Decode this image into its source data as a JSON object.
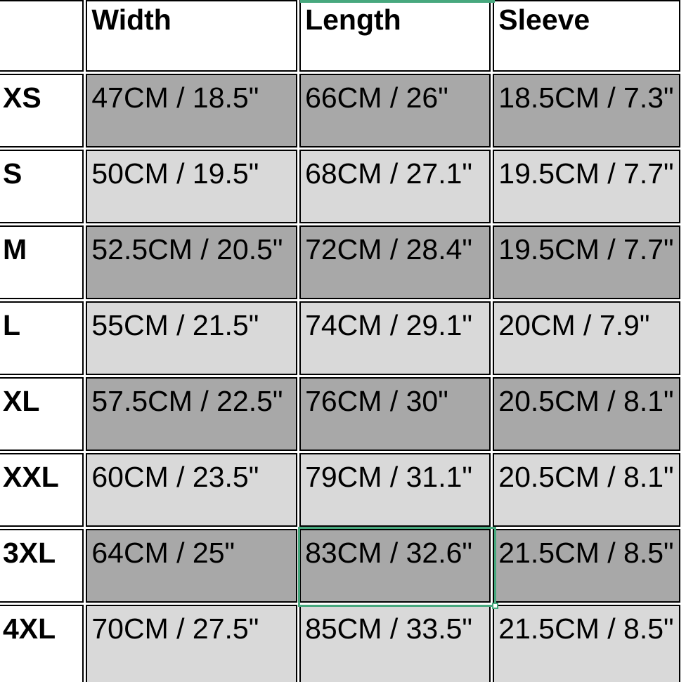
{
  "table": {
    "corner_label": "",
    "columns": [
      {
        "label": "Width"
      },
      {
        "label": "Length"
      },
      {
        "label": "Sleeve"
      }
    ],
    "rows": [
      {
        "size": "XS",
        "width": "47CM / 18.5\"",
        "length": "66CM / 26\"",
        "sleeve": "18.5CM / 7.3\""
      },
      {
        "size": "S",
        "width": "50CM / 19.5\"",
        "length": "68CM / 27.1\"",
        "sleeve": "19.5CM / 7.7\""
      },
      {
        "size": "M",
        "width": "52.5CM / 20.5\"",
        "length": "72CM / 28.4\"",
        "sleeve": "19.5CM / 7.7\""
      },
      {
        "size": "L",
        "width": "55CM / 21.5\"",
        "length": "74CM / 29.1\"",
        "sleeve": "20CM / 7.9\""
      },
      {
        "size": "XL",
        "width": "57.5CM / 22.5\"",
        "length": "76CM / 30\"",
        "sleeve": "20.5CM / 8.1\""
      },
      {
        "size": "XXL",
        "width": "60CM / 23.5\"",
        "length": "79CM / 31.1\"",
        "sleeve": "20.5CM / 8.1\""
      },
      {
        "size": "3XL",
        "width": "64CM / 25\"",
        "length": "83CM / 32.6\"",
        "sleeve": "21.5CM / 8.5\""
      },
      {
        "size": "4XL",
        "width": "70CM / 27.5\"",
        "length": "85CM / 33.5\"",
        "sleeve": "21.5CM / 8.5\""
      }
    ],
    "selection": {
      "row": "3XL",
      "column": "Length",
      "value": "83CM / 32.6\""
    },
    "colors": {
      "row_dark": "#a8a8a8",
      "row_light": "#d9d9d9",
      "selection_green": "#47a87e",
      "grid_border": "#000000",
      "background": "#ffffff",
      "text": "#000000"
    }
  }
}
